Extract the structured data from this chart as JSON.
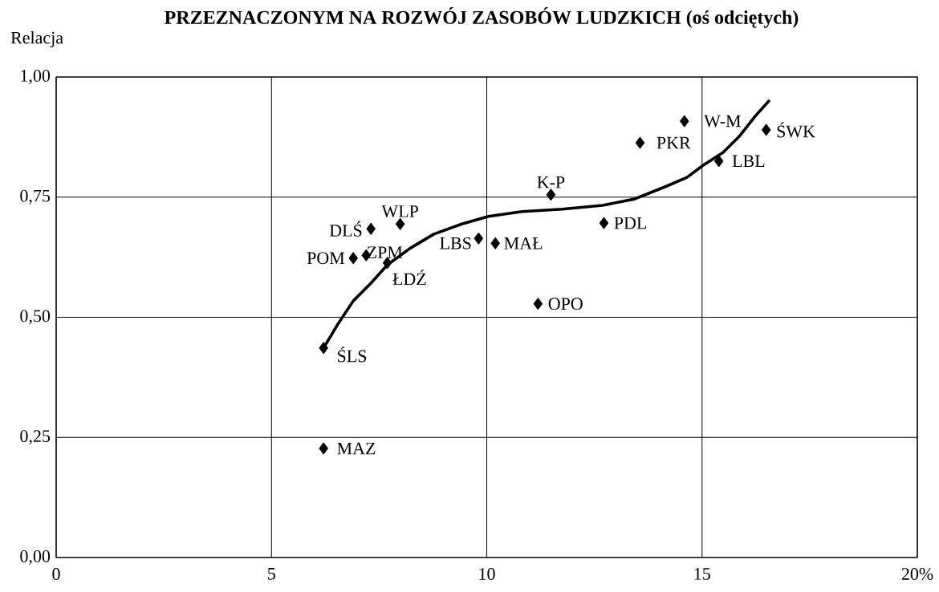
{
  "chart_data": {
    "type": "scatter",
    "title": "PRZEZNACZONYM NA ROZWÓJ ZASOBÓW LUDZKICH (oś odciętych)",
    "ylabel": "Relacja",
    "series": [
      {
        "color": "#000000",
        "marker": "diamond",
        "x": [
          6.21,
          6.21,
          6.9,
          7.2,
          7.31,
          7.69,
          7.99,
          9.81,
          10.2,
          11.19,
          11.49,
          12.72,
          13.56,
          14.59,
          15.39,
          16.49
        ],
        "values": [
          0.436,
          0.227,
          0.623,
          0.629,
          0.684,
          0.613,
          0.694,
          0.664,
          0.654,
          0.528,
          0.755,
          0.696,
          0.863,
          0.908,
          0.825,
          0.89
        ]
      },
      {
        "type": "line",
        "color": "#000000",
        "marker": "none",
        "x": [
          6.21,
          6.53,
          6.9,
          7.31,
          7.69,
          8.21,
          8.77,
          9.42,
          10.04,
          10.82,
          11.75,
          12.69,
          13.43,
          14.18,
          14.65,
          15.02,
          15.49,
          15.86,
          16.23,
          16.55
        ],
        "values": [
          0.436,
          0.484,
          0.534,
          0.571,
          0.609,
          0.643,
          0.673,
          0.694,
          0.71,
          0.72,
          0.725,
          0.733,
          0.746,
          0.773,
          0.791,
          0.816,
          0.843,
          0.876,
          0.918,
          0.95
        ]
      }
    ],
    "annotations": [
      {
        "text": "ŚLS",
        "x": 6.21,
        "y": 0.436
      },
      {
        "text": "MAZ",
        "x": 6.21,
        "y": 0.227
      },
      {
        "text": "POM",
        "x": 6.9,
        "y": 0.623
      },
      {
        "text": "ZPM",
        "x": 7.2,
        "y": 0.629
      },
      {
        "text": "DLŚ",
        "x": 7.31,
        "y": 0.684
      },
      {
        "text": "ŁDŹ",
        "x": 7.69,
        "y": 0.613
      },
      {
        "text": "WLP",
        "x": 7.99,
        "y": 0.694
      },
      {
        "text": "LBS",
        "x": 9.81,
        "y": 0.664
      },
      {
        "text": "MAŁ",
        "x": 10.2,
        "y": 0.654
      },
      {
        "text": "OPO",
        "x": 11.19,
        "y": 0.528
      },
      {
        "text": "K-P",
        "x": 11.49,
        "y": 0.755
      },
      {
        "text": "PDL",
        "x": 12.72,
        "y": 0.696
      },
      {
        "text": "PKR",
        "x": 13.56,
        "y": 0.863
      },
      {
        "text": "W-M",
        "x": 14.59,
        "y": 0.908
      },
      {
        "text": "LBL",
        "x": 15.39,
        "y": 0.825
      },
      {
        "text": "ŚWK",
        "x": 16.49,
        "y": 0.89
      }
    ],
    "xlim": [
      0,
      20
    ],
    "xticks": [
      0,
      5,
      10,
      15,
      {
        "value": 20,
        "label": "20%"
      }
    ],
    "ylim": [
      0,
      1
    ],
    "yticks": [
      {
        "value": 0,
        "label": "0,00"
      },
      {
        "value": 0.25,
        "label": "0,25"
      },
      {
        "value": 0.5,
        "label": "0,50"
      },
      {
        "value": 0.75,
        "label": "0,75"
      },
      {
        "value": 1,
        "label": "1,00"
      }
    ],
    "grid": true
  }
}
